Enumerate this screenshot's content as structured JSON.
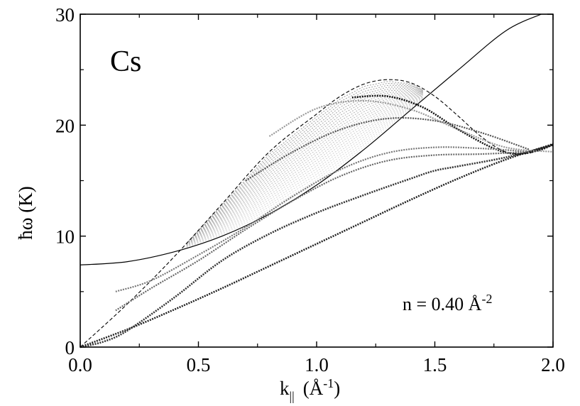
{
  "chart_data": {
    "type": "line",
    "xlim": [
      0.0,
      2.0
    ],
    "ylim": [
      0,
      30
    ],
    "x_ticks": [
      "0.0",
      "0.5",
      "1.0",
      "1.5",
      "2.0"
    ],
    "x_tick_values": [
      0.0,
      0.5,
      1.0,
      1.5,
      2.0
    ],
    "y_ticks": [
      "0",
      "10",
      "20",
      "30"
    ],
    "y_tick_values": [
      0,
      10,
      20,
      30
    ],
    "ylabel": "ħω  (K)",
    "xlabel_main": "k",
    "xlabel_sub": "||",
    "xlabel_unit": "(Å",
    "xlabel_unit_exp": "-1",
    "xlabel_unit_close": ")",
    "panel_label": "Cs",
    "annotation": {
      "text": "n  =  0.40 Å",
      "exponent": "-2"
    },
    "grid": false,
    "legend": "none",
    "series": [
      {
        "style": "solid-thin",
        "color": "#000000",
        "x": [
          0.0,
          0.2,
          0.4,
          0.6,
          0.8,
          1.0,
          1.2,
          1.4,
          1.6,
          1.8,
          1.95
        ],
        "y": [
          7.4,
          7.7,
          8.6,
          10.0,
          12.0,
          14.6,
          17.8,
          21.4,
          25.0,
          28.5,
          30.0
        ]
      },
      {
        "style": "dashed",
        "color": "#000000",
        "x": [
          0.0,
          0.2,
          0.4,
          0.6,
          0.8,
          1.0,
          1.1,
          1.2,
          1.3,
          1.4,
          1.5,
          1.6,
          1.7,
          1.8,
          1.9,
          2.0
        ],
        "y": [
          0.0,
          3.9,
          8.2,
          12.9,
          17.6,
          21.0,
          22.6,
          23.7,
          24.1,
          23.8,
          22.6,
          20.8,
          18.9,
          17.6,
          17.5,
          18.3
        ]
      },
      {
        "style": "dotted-black",
        "color": "#222222",
        "x": [
          0.0,
          0.2,
          0.4,
          0.6,
          0.8,
          1.0,
          1.2,
          1.4,
          1.6,
          1.8,
          2.0
        ],
        "y": [
          0.0,
          1.6,
          3.4,
          5.3,
          7.3,
          9.3,
          11.3,
          13.3,
          15.2,
          16.9,
          18.3
        ]
      },
      {
        "style": "dotted-black",
        "color": "#333333",
        "x": [
          0.0,
          0.1,
          0.2,
          0.4,
          0.6,
          0.8,
          1.0,
          1.2,
          1.4,
          1.5,
          1.6,
          1.8,
          2.0
        ],
        "y": [
          0.0,
          0.5,
          1.5,
          4.5,
          7.8,
          10.2,
          12.1,
          13.7,
          15.2,
          15.9,
          16.3,
          17.1,
          18.2
        ]
      },
      {
        "style": "dotted-black",
        "color": "#111111",
        "x": [
          1.15,
          1.3,
          1.45,
          1.6,
          1.75,
          1.85,
          1.95,
          2.0
        ],
        "y": [
          22.5,
          22.6,
          21.6,
          19.6,
          17.9,
          17.4,
          17.8,
          18.3
        ]
      },
      {
        "style": "dotted-grey",
        "color": "#666666",
        "x": [
          0.15,
          0.3,
          0.5,
          0.7,
          0.9,
          1.1,
          1.3,
          1.5,
          1.7,
          1.9
        ],
        "y": [
          3.3,
          5.3,
          7.8,
          10.6,
          13.2,
          15.4,
          16.8,
          17.3,
          17.4,
          17.6
        ]
      },
      {
        "style": "dotted-grey",
        "color": "#777777",
        "x": [
          0.15,
          0.3,
          0.5,
          0.7,
          0.9,
          1.1,
          1.3,
          1.5,
          1.7,
          1.9
        ],
        "y": [
          5.0,
          6.0,
          8.3,
          10.8,
          13.6,
          16.0,
          17.5,
          18.0,
          17.9,
          17.6
        ]
      },
      {
        "style": "dotted-grey",
        "color": "#555555",
        "x": [
          0.7,
          0.9,
          1.1,
          1.3,
          1.5,
          1.7,
          1.9
        ],
        "y": [
          15.0,
          17.6,
          19.6,
          20.6,
          20.4,
          19.3,
          17.8
        ]
      },
      {
        "style": "dotted-grey",
        "color": "#999999",
        "x": [
          0.8,
          1.0,
          1.2,
          1.4,
          1.6,
          1.8,
          2.0
        ],
        "y": [
          19.0,
          21.5,
          22.2,
          21.4,
          19.6,
          18.0,
          17.6
        ]
      }
    ]
  }
}
